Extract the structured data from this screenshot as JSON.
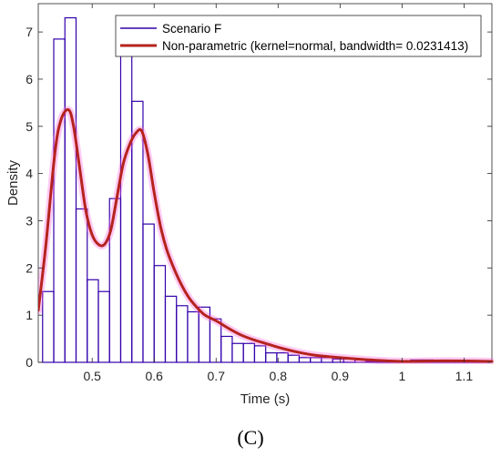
{
  "panel_label": "(C)",
  "chart_data": {
    "type": "bar",
    "subtype": "histogram with density curve overlay",
    "xlabel": "Time (s)",
    "ylabel": "Density",
    "xlim": [
      0.413,
      1.145
    ],
    "ylim": [
      0,
      7.6
    ],
    "x_ticks": [
      0.5,
      0.6,
      0.7,
      0.8,
      0.9,
      1,
      1.1
    ],
    "x_tick_labels": [
      "0.5",
      "0.6",
      "0.7",
      "0.8",
      "0.9",
      "1",
      "1.1"
    ],
    "y_ticks": [
      0,
      1,
      2,
      3,
      4,
      5,
      6,
      7
    ],
    "y_tick_labels": [
      "0",
      "1",
      "2",
      "3",
      "4",
      "5",
      "6",
      "7"
    ],
    "grid": false,
    "legend_position": "top-right",
    "colors": {
      "histogram": "#3300aa",
      "curve": "#b5231e",
      "curve_glow": "#ff66dd"
    },
    "series": [
      {
        "name": "Scenario F",
        "kind": "histogram",
        "bin_edges": [
          0.42,
          0.438,
          0.456,
          0.474,
          0.492,
          0.51,
          0.528,
          0.546,
          0.564,
          0.582,
          0.6,
          0.618,
          0.636,
          0.654,
          0.672,
          0.69,
          0.708,
          0.726,
          0.744,
          0.762,
          0.78,
          0.798,
          0.816,
          0.834,
          0.852,
          0.87,
          0.888,
          0.906,
          0.924,
          0.942,
          0.96,
          0.978,
          0.996,
          1.014,
          1.032,
          1.05,
          1.068,
          1.086,
          1.104,
          1.122,
          1.14
        ],
        "values": [
          1.5,
          6.85,
          7.3,
          3.25,
          1.75,
          1.5,
          3.47,
          6.5,
          5.53,
          2.93,
          2.05,
          1.4,
          1.2,
          1.07,
          1.17,
          0.92,
          0.55,
          0.4,
          0.4,
          0.35,
          0.2,
          0.2,
          0.15,
          0.1,
          0.1,
          0.1,
          0.07,
          0.07,
          0.05,
          0.02,
          0.02,
          0.02,
          0.02,
          0.05,
          0.05,
          0.02,
          0.02,
          0.02,
          0.02,
          0.02
        ]
      },
      {
        "name": "Non-parametric (kernel=normal, bandwidth= 0.0231413)",
        "kind": "line",
        "x": [
          0.413,
          0.425,
          0.44,
          0.45,
          0.462,
          0.47,
          0.48,
          0.49,
          0.5,
          0.51,
          0.52,
          0.53,
          0.54,
          0.55,
          0.56,
          0.57,
          0.58,
          0.59,
          0.6,
          0.61,
          0.62,
          0.63,
          0.64,
          0.65,
          0.66,
          0.68,
          0.7,
          0.72,
          0.74,
          0.76,
          0.78,
          0.8,
          0.83,
          0.86,
          0.9,
          0.95,
          1.0,
          1.05,
          1.1,
          1.145
        ],
        "y": [
          1.1,
          2.45,
          4.45,
          5.15,
          5.35,
          5.0,
          4.1,
          3.2,
          2.7,
          2.5,
          2.5,
          2.8,
          3.5,
          4.2,
          4.6,
          4.85,
          4.9,
          4.4,
          3.6,
          2.9,
          2.4,
          2.05,
          1.75,
          1.5,
          1.3,
          1.02,
          0.88,
          0.72,
          0.58,
          0.48,
          0.4,
          0.32,
          0.22,
          0.15,
          0.1,
          0.05,
          0.02,
          0.03,
          0.03,
          0.02
        ]
      }
    ]
  }
}
